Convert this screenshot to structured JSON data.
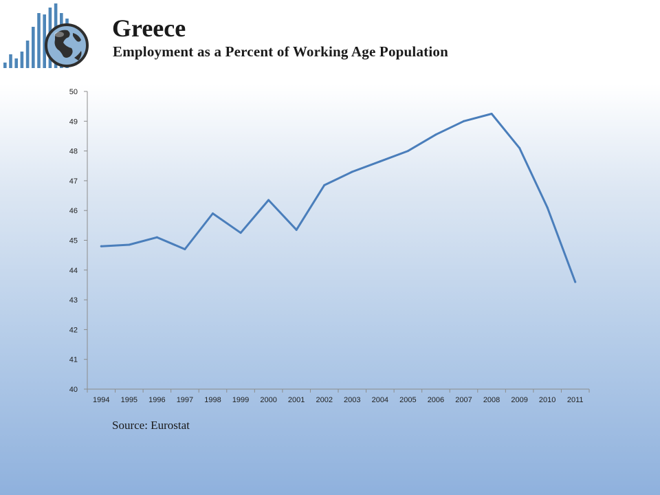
{
  "header": {
    "title": "Greece",
    "subtitle": "Employment as a Percent of Working Age Population"
  },
  "logo": {
    "icon": "globe-bar-chart-logo",
    "bar_color": "#4e86b8",
    "globe_color": "#3a3a3a"
  },
  "footer": {
    "source": "Source: Eurostat"
  },
  "colors": {
    "line": "#4a7ebb",
    "axis": "#8c8c8c"
  },
  "chart_data": {
    "type": "line",
    "title": "",
    "xlabel": "",
    "ylabel": "",
    "categories": [
      "1994",
      "1995",
      "1996",
      "1997",
      "1998",
      "1999",
      "2000",
      "2001",
      "2002",
      "2003",
      "2004",
      "2005",
      "2006",
      "2007",
      "2008",
      "2009",
      "2010",
      "2011"
    ],
    "series": [
      {
        "values": [
          44.8,
          44.85,
          45.1,
          44.7,
          45.9,
          45.25,
          46.35,
          45.35,
          46.85,
          47.3,
          47.65,
          48.0,
          48.55,
          49.0,
          49.25,
          48.1,
          46.1,
          43.6
        ]
      }
    ],
    "ylim": [
      40,
      50
    ],
    "yticks": [
      "40",
      "41",
      "42",
      "43",
      "44",
      "45",
      "46",
      "47",
      "48",
      "49",
      "50"
    ],
    "grid": false,
    "legend": "none"
  }
}
